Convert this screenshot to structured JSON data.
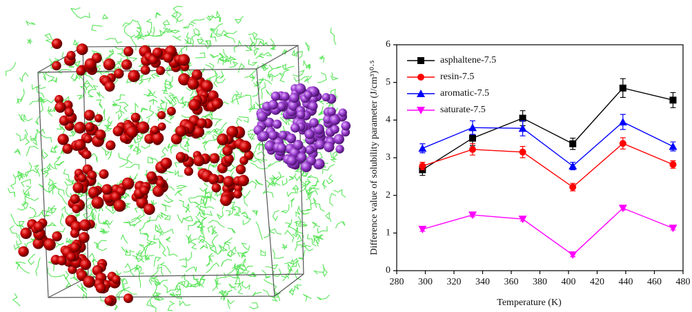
{
  "chart_data": {
    "type": "line",
    "x_label": "Temperature (K)",
    "y_label": "Difference value of solubility parameter (J/cm³)⁰·⁵",
    "xlim": [
      280,
      480
    ],
    "xticks": [
      280,
      300,
      320,
      340,
      360,
      380,
      400,
      420,
      440,
      460,
      480
    ],
    "ylim": [
      0,
      6
    ],
    "yticks": [
      0,
      1,
      2,
      3,
      4,
      5,
      6
    ],
    "legend": "upper left",
    "x": [
      298,
      333,
      368,
      403,
      438,
      473
    ],
    "series": [
      {
        "name": "asphaltene-7.5",
        "color": "#000000",
        "marker": "square",
        "values": [
          2.68,
          3.52,
          4.05,
          3.37,
          4.85,
          4.53
        ],
        "errors": [
          0.15,
          0.2,
          0.2,
          0.15,
          0.25,
          0.2
        ]
      },
      {
        "name": "resin-7.5",
        "color": "#ff0000",
        "marker": "circle",
        "values": [
          2.78,
          3.22,
          3.15,
          2.22,
          3.38,
          2.82
        ],
        "errors": [
          0.1,
          0.15,
          0.15,
          0.1,
          0.15,
          0.1
        ]
      },
      {
        "name": "aromatic-7.5",
        "color": "#0000ff",
        "marker": "triangle-up",
        "values": [
          3.25,
          3.8,
          3.78,
          2.78,
          3.95,
          3.3
        ],
        "errors": [
          0.12,
          0.18,
          0.2,
          0.1,
          0.2,
          0.12
        ]
      },
      {
        "name": "saturate-7.5",
        "color": "#ff00ff",
        "marker": "triangle-down",
        "values": [
          1.1,
          1.48,
          1.37,
          0.42,
          1.66,
          1.13
        ],
        "errors": [
          0.05,
          0.05,
          0.05,
          0.05,
          0.05,
          0.05
        ]
      }
    ]
  }
}
